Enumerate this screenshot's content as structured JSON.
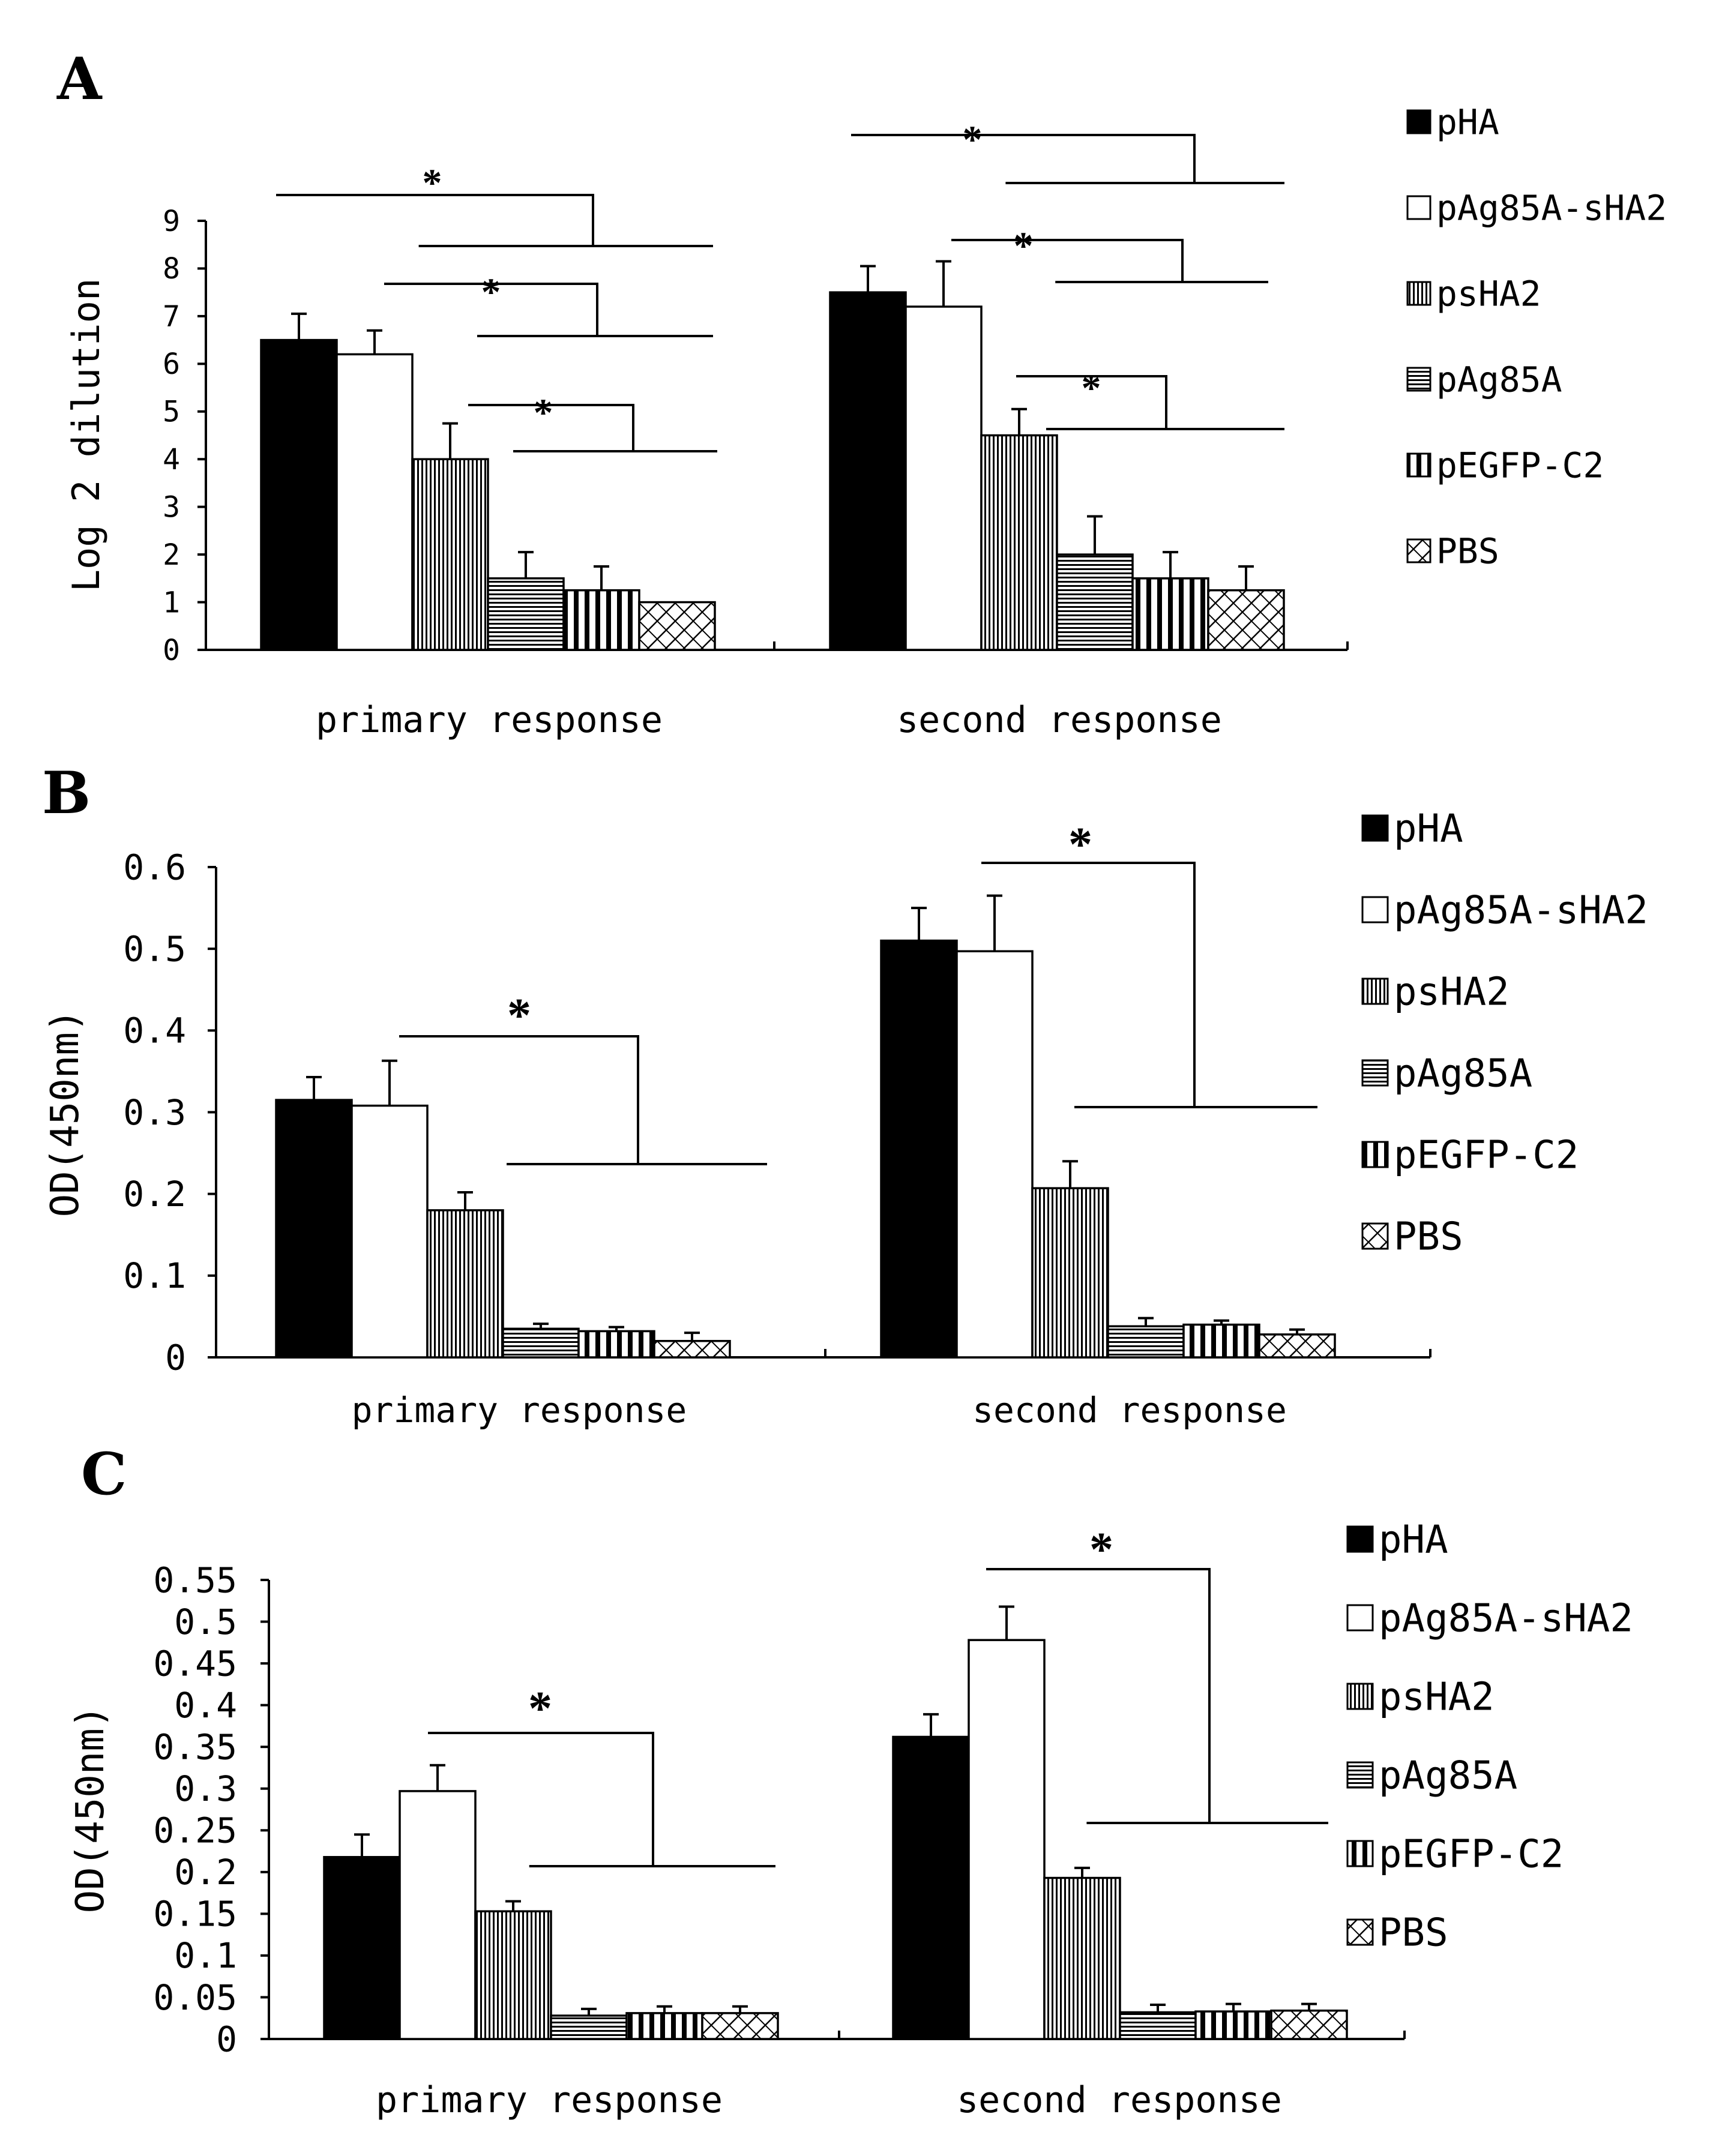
{
  "chart_data": [
    {
      "type": "bar",
      "panel": "A",
      "ylabel": "Log 2 dilution",
      "ylim": [
        0,
        9
      ],
      "yticks": [
        "0",
        "1",
        "2",
        "3",
        "4",
        "5",
        "6",
        "7",
        "8",
        "9"
      ],
      "categories": [
        "primary response",
        "second response"
      ],
      "series": [
        {
          "name": "pHA",
          "values": [
            6.5,
            7.5
          ],
          "errors": [
            0.55,
            0.55
          ]
        },
        {
          "name": "pAg85A-sHA2",
          "values": [
            6.2,
            7.2
          ],
          "errors": [
            0.5,
            0.95
          ]
        },
        {
          "name": "psHA2",
          "values": [
            4.0,
            4.5
          ],
          "errors": [
            0.75,
            0.55
          ]
        },
        {
          "name": "pAg85A",
          "values": [
            1.5,
            2.0
          ],
          "errors": [
            0.55,
            0.8
          ]
        },
        {
          "name": "pEGFP-C2",
          "values": [
            1.25,
            1.5
          ],
          "errors": [
            0.5,
            0.55
          ]
        },
        {
          "name": "PBS",
          "values": [
            1.0,
            1.25
          ],
          "errors": [
            0,
            0.5
          ]
        }
      ],
      "significance": [
        "*",
        "*",
        "*",
        "*",
        "*",
        "*"
      ]
    },
    {
      "type": "bar",
      "panel": "B",
      "ylabel": "OD(450nm)",
      "ylim": [
        0,
        0.6
      ],
      "yticks": [
        "0",
        "0.1",
        "0.2",
        "0.3",
        "0.4",
        "0.5",
        "0.6"
      ],
      "categories": [
        "primary response",
        "second response"
      ],
      "series": [
        {
          "name": "pHA",
          "values": [
            0.315,
            0.51
          ],
          "errors": [
            0.028,
            0.04
          ]
        },
        {
          "name": "pAg85A-sHA2",
          "values": [
            0.308,
            0.497
          ],
          "errors": [
            0.055,
            0.068
          ]
        },
        {
          "name": "psHA2",
          "values": [
            0.18,
            0.207
          ],
          "errors": [
            0.022,
            0.033
          ]
        },
        {
          "name": "pAg85A",
          "values": [
            0.035,
            0.038
          ],
          "errors": [
            0.006,
            0.01
          ]
        },
        {
          "name": "pEGFP-C2",
          "values": [
            0.032,
            0.04
          ],
          "errors": [
            0.005,
            0.005
          ]
        },
        {
          "name": "PBS",
          "values": [
            0.02,
            0.028
          ],
          "errors": [
            0.01,
            0.006
          ]
        }
      ],
      "significance": [
        "*",
        "*"
      ]
    },
    {
      "type": "bar",
      "panel": "C",
      "ylabel": "OD(450nm)",
      "ylim": [
        0,
        0.55
      ],
      "yticks": [
        "0",
        "0.05",
        "0.1",
        "0.15",
        "0.2",
        "0.25",
        "0.3",
        "0.35",
        "0.4",
        "0.45",
        "0.5",
        "0.55"
      ],
      "categories": [
        "primary response",
        "second response"
      ],
      "series": [
        {
          "name": "pHA",
          "values": [
            0.218,
            0.362
          ],
          "errors": [
            0.027,
            0.027
          ]
        },
        {
          "name": "pAg85A-sHA2",
          "values": [
            0.297,
            0.478
          ],
          "errors": [
            0.031,
            0.04
          ]
        },
        {
          "name": "psHA2",
          "values": [
            0.153,
            0.193
          ],
          "errors": [
            0.012,
            0.012
          ]
        },
        {
          "name": "pAg85A",
          "values": [
            0.028,
            0.032
          ],
          "errors": [
            0.008,
            0.009
          ]
        },
        {
          "name": "pEGFP-C2",
          "values": [
            0.031,
            0.033
          ],
          "errors": [
            0.008,
            0.009
          ]
        },
        {
          "name": "PBS",
          "values": [
            0.031,
            0.034
          ],
          "errors": [
            0.008,
            0.008
          ]
        }
      ],
      "significance": [
        "*",
        "*"
      ]
    }
  ]
}
